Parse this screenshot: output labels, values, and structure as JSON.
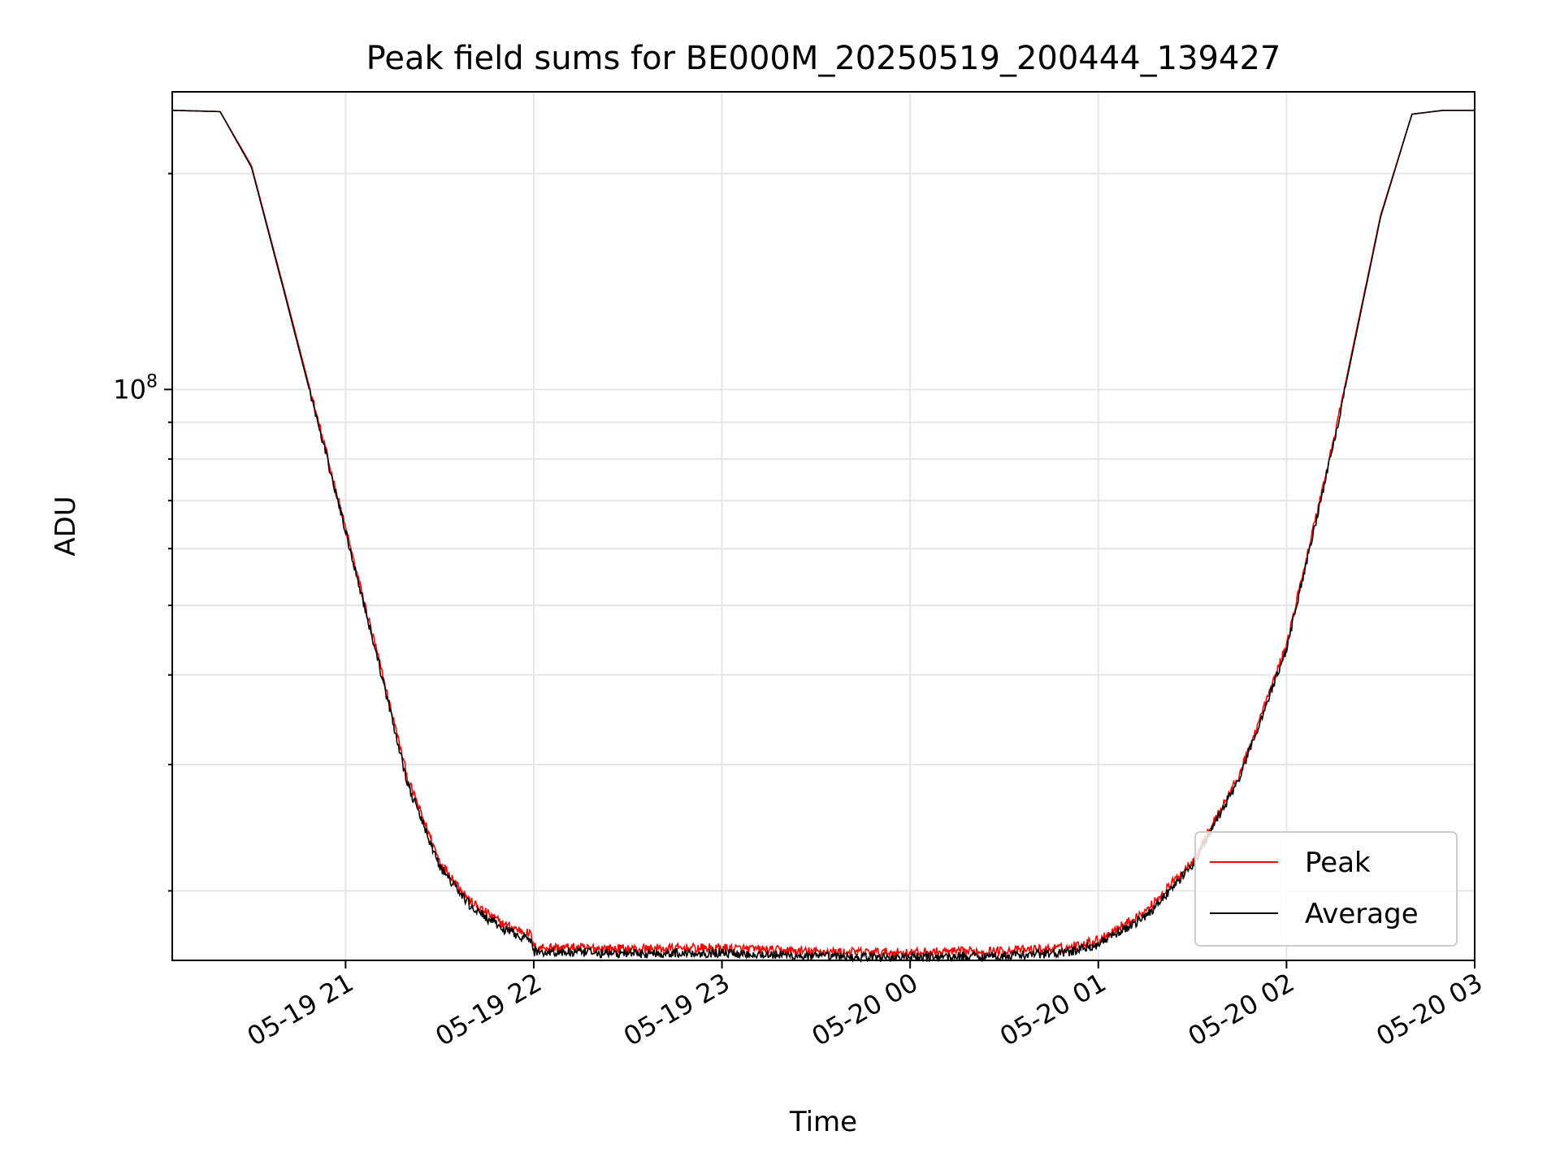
{
  "chart_data": {
    "type": "line",
    "title": "Peak field sums for BE000M_20250519_200444_139427",
    "xlabel": "Time",
    "ylabel": "ADU",
    "y_scale": "log",
    "ylim": [
      16000000,
      260000000
    ],
    "xlim": [
      "2025-05-19 20:04:44",
      "2025-05-20 03:00:00"
    ],
    "x_ticks": [
      "05-19 21",
      "05-19 22",
      "05-19 23",
      "05-20 00",
      "05-20 01",
      "05-20 02",
      "05-20 03"
    ],
    "y_ticks": [
      {
        "value": 100000000,
        "base": "10",
        "exp": "8"
      }
    ],
    "grid": true,
    "legend_position": "lower-right",
    "colors": {
      "peak": "#ff0000",
      "average": "#000000",
      "grid": "#e6e6e6"
    },
    "series": [
      {
        "name": "Peak",
        "color": "#ff0000",
        "x": [
          "2025-05-19 20:04:44",
          "2025-05-19 20:20",
          "2025-05-19 20:30",
          "2025-05-19 20:40",
          "2025-05-19 20:50",
          "2025-05-19 21:00",
          "2025-05-19 21:10",
          "2025-05-19 21:20",
          "2025-05-19 21:30",
          "2025-05-19 21:40",
          "2025-05-19 21:50",
          "2025-05-19 21:59",
          "2025-05-19 22:00",
          "2025-05-19 22:30",
          "2025-05-19 23:00",
          "2025-05-19 23:30",
          "2025-05-20 00:00",
          "2025-05-20 00:30",
          "2025-05-20 00:50",
          "2025-05-20 01:00",
          "2025-05-20 01:15",
          "2025-05-20 01:30",
          "2025-05-20 01:45",
          "2025-05-20 02:00",
          "2025-05-20 02:15",
          "2025-05-20 02:30",
          "2025-05-20 02:40",
          "2025-05-20 02:50"
        ],
        "y": [
          245000000,
          244000000,
          205000000,
          140000000,
          95000000,
          64000000,
          43000000,
          28500000,
          22000000,
          19300000,
          18000000,
          17400000,
          16700000,
          16600000,
          16650000,
          16450000,
          16400000,
          16500000,
          16650000,
          17100000,
          18700000,
          22000000,
          29000000,
          44000000,
          85000000,
          175000000,
          242000000,
          245000000
        ]
      },
      {
        "name": "Average",
        "color": "#000000",
        "x": [
          "2025-05-19 20:04:44",
          "2025-05-19 20:20",
          "2025-05-19 20:30",
          "2025-05-19 20:40",
          "2025-05-19 20:50",
          "2025-05-19 21:00",
          "2025-05-19 21:10",
          "2025-05-19 21:20",
          "2025-05-19 21:30",
          "2025-05-19 21:40",
          "2025-05-19 21:50",
          "2025-05-19 21:59",
          "2025-05-19 22:00",
          "2025-05-19 22:30",
          "2025-05-19 23:00",
          "2025-05-19 23:30",
          "2025-05-20 00:00",
          "2025-05-20 00:30",
          "2025-05-20 00:50",
          "2025-05-20 01:00",
          "2025-05-20 01:15",
          "2025-05-20 01:30",
          "2025-05-20 01:45",
          "2025-05-20 02:00",
          "2025-05-20 02:15",
          "2025-05-20 02:30",
          "2025-05-20 02:40",
          "2025-05-20 02:50"
        ],
        "y": [
          245000000,
          244000000,
          204000000,
          139000000,
          94000000,
          63500000,
          42500000,
          28000000,
          21600000,
          19000000,
          17700000,
          17100000,
          16450000,
          16350000,
          16400000,
          16200000,
          16150000,
          16250000,
          16400000,
          16850000,
          18400000,
          21700000,
          28700000,
          43500000,
          84000000,
          174000000,
          242000000,
          245000000
        ]
      }
    ]
  }
}
